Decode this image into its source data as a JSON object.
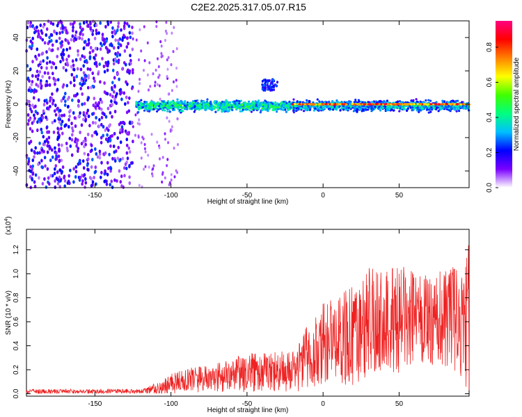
{
  "title": "C2E2.2025.317.05.07.R15",
  "chart_data": [
    {
      "type": "heatmap",
      "xlabel": "Height of straight line (km)",
      "ylabel": "Frequency (Hz)",
      "xlim": [
        -195,
        96
      ],
      "ylim": [
        -50,
        50
      ],
      "xticks": [
        -150,
        -100,
        -50,
        0,
        50
      ],
      "xtick_labels": [
        "-150",
        "-100",
        "-50",
        "0",
        "50"
      ],
      "yticks": [
        40,
        20,
        0,
        -20,
        -40
      ],
      "ytick_labels": [
        "40",
        "20",
        "0",
        "-20",
        "-40"
      ],
      "colorbar": {
        "label": "Normalized spectral amplitude",
        "range": [
          0,
          0.95
        ],
        "ticks": [
          0.0,
          0.2,
          0.4,
          0.6,
          0.8
        ],
        "tick_labels": [
          "0.0",
          "0.2",
          "0.4",
          "0.6",
          "0.8"
        ],
        "colormap": [
          "#ffffff",
          "#7a00ff",
          "#0000ff",
          "#00c0ff",
          "#00ff80",
          "#40ff00",
          "#ffff00",
          "#ff8000",
          "#ff0000",
          "#ff0080"
        ]
      },
      "features": [
        {
          "name": "broadband noise",
          "x_range": [
            -195,
            -125
          ],
          "freq_range": [
            -50,
            50
          ],
          "amplitude": 0.25
        },
        {
          "name": "signal band",
          "x_range": [
            -123,
            96
          ],
          "freq_center": -1,
          "freq_halfwidth": 4
        },
        {
          "name": "strong line",
          "x_range": [
            -20,
            96
          ],
          "freq_center": 0,
          "amplitude": 0.9
        },
        {
          "name": "harmonic",
          "x_range": [
            -40,
            -30
          ],
          "freq_range": [
            8,
            15
          ]
        }
      ]
    },
    {
      "type": "line",
      "xlabel": "Height of straight line (km)",
      "ylabel": "SNR (10 * v/v)",
      "y_scale_label": "(x10",
      "y_scale_exponent": "4",
      "xlim": [
        -195,
        96
      ],
      "ylim": [
        -0.02,
        1.37
      ],
      "xticks": [
        -150,
        -100,
        -50,
        0,
        50
      ],
      "xtick_labels": [
        "-150",
        "-100",
        "-50",
        "0",
        "50"
      ],
      "yticks": [
        0.0,
        0.2,
        0.4,
        0.6,
        0.8,
        1.0,
        1.2
      ],
      "ytick_labels": [
        "0.0",
        "0.2",
        "0.4",
        "0.6",
        "0.8",
        "1.0",
        "1.2"
      ],
      "color": "#ee2222",
      "envelope": {
        "x": [
          -195,
          -120,
          -110,
          -100,
          -90,
          -80,
          -70,
          -60,
          -50,
          -40,
          -30,
          -20,
          -10,
          0,
          10,
          20,
          30,
          40,
          50,
          60,
          70,
          80,
          90,
          96
        ],
        "mean": [
          0.02,
          0.02,
          0.04,
          0.08,
          0.11,
          0.12,
          0.13,
          0.15,
          0.17,
          0.18,
          0.19,
          0.18,
          0.3,
          0.42,
          0.44,
          0.5,
          0.58,
          0.6,
          0.62,
          0.62,
          0.61,
          0.63,
          0.64,
          0.62
        ],
        "peak": [
          0.04,
          0.04,
          0.09,
          0.17,
          0.22,
          0.24,
          0.26,
          0.3,
          0.34,
          0.36,
          0.37,
          0.35,
          0.6,
          0.78,
          0.82,
          0.95,
          1.05,
          1.05,
          1.1,
          1.04,
          1.0,
          1.07,
          1.15,
          1.35
        ]
      }
    }
  ]
}
